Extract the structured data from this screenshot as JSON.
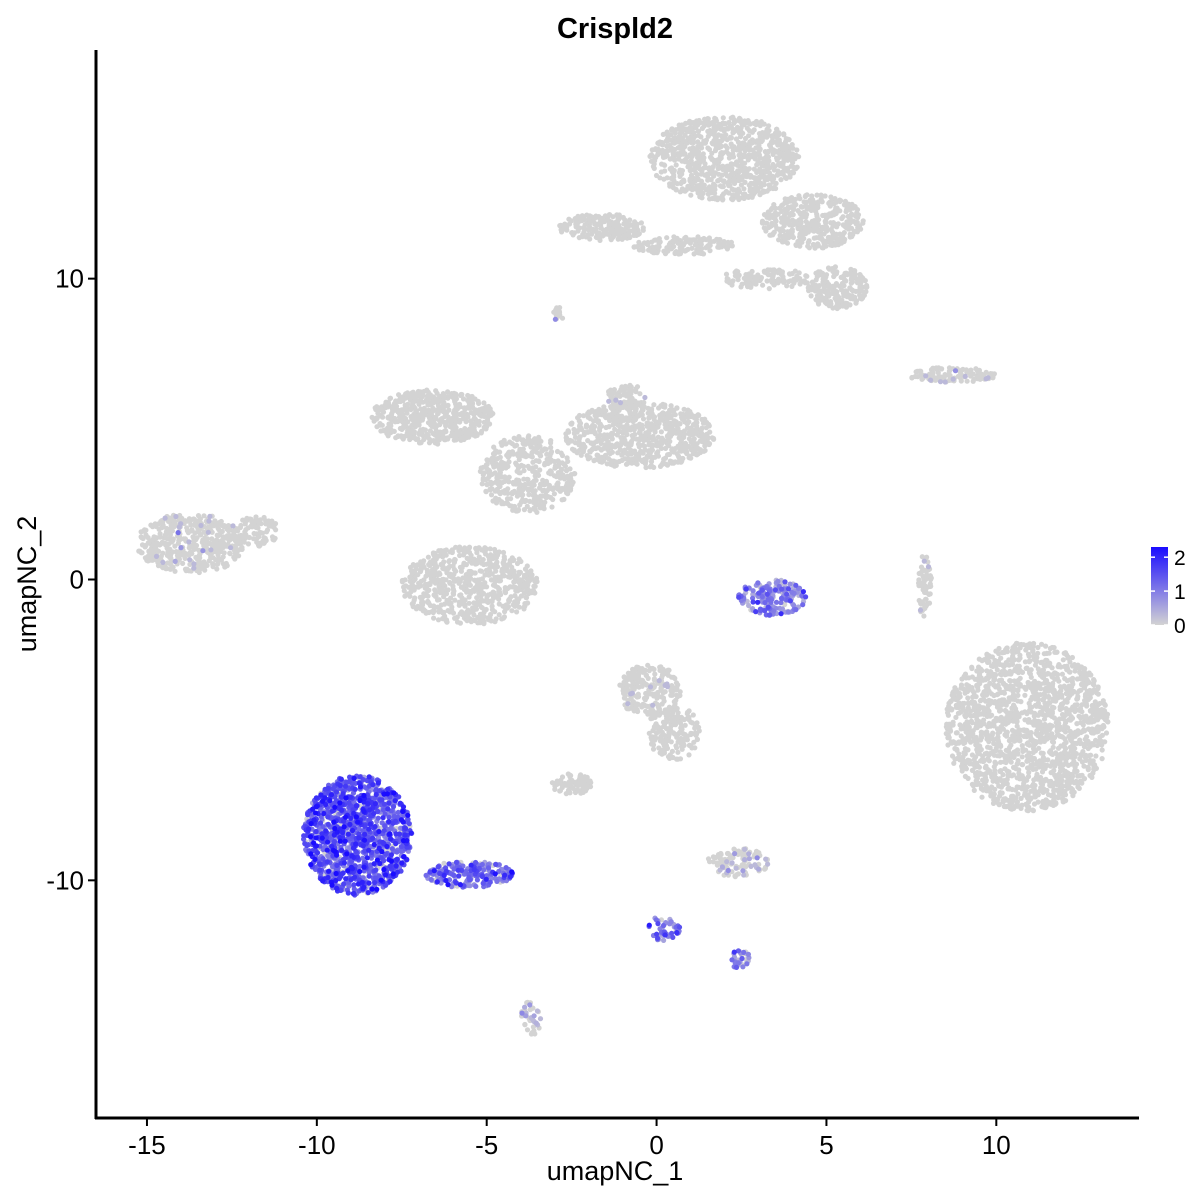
{
  "chart_data": {
    "type": "scatter",
    "title": "Crispld2",
    "xlabel": "umapNC_1",
    "ylabel": "umapNC_2",
    "xlim": [
      -16.5,
      14.2
    ],
    "ylim": [
      -17.9,
      17.6
    ],
    "x_ticks": [
      -15,
      -10,
      -5,
      0,
      5,
      10
    ],
    "y_ticks": [
      -10,
      0,
      10
    ],
    "x_tick_labels": [
      "-15",
      "-10",
      "-5",
      "0",
      "5",
      "10"
    ],
    "y_tick_labels": [
      "-10",
      "0",
      "10"
    ],
    "grid": false,
    "legend": {
      "position": "right",
      "min": 0,
      "max": 2.3,
      "ticks": [
        0,
        1,
        2
      ],
      "tick_labels": [
        "0",
        "1",
        "2"
      ]
    },
    "colors": {
      "low": "#d3d3d3",
      "high": "#1a0cff"
    },
    "clusters": [
      {
        "id": "top-cluster-body",
        "cx": 2.0,
        "cy": 14.0,
        "rx": 2.2,
        "ry": 1.4,
        "expr": 0,
        "n": 900
      },
      {
        "id": "top-cluster-right",
        "cx": 4.6,
        "cy": 11.9,
        "rx": 1.5,
        "ry": 0.9,
        "expr": 0,
        "n": 380
      },
      {
        "id": "top-cluster-tail-right",
        "cx": 5.3,
        "cy": 9.7,
        "rx": 0.9,
        "ry": 0.7,
        "expr": 0,
        "n": 200
      },
      {
        "id": "top-cluster-arm-left",
        "cx": -1.6,
        "cy": 11.7,
        "rx": 1.3,
        "ry": 0.45,
        "expr": 0,
        "n": 200
      },
      {
        "id": "top-cluster-arm-mid",
        "cx": 0.8,
        "cy": 11.1,
        "rx": 1.5,
        "ry": 0.3,
        "expr": 0,
        "n": 140
      },
      {
        "id": "top-cluster-arm-low",
        "cx": 3.2,
        "cy": 10.0,
        "rx": 1.3,
        "ry": 0.35,
        "expr": 0,
        "n": 110
      },
      {
        "id": "small-cluster-top",
        "cx": -2.9,
        "cy": 8.8,
        "rx": 0.15,
        "ry": 0.25,
        "expr": 0.1,
        "n": 15
      },
      {
        "id": "right-strip",
        "cx": 8.7,
        "cy": 6.8,
        "rx": 1.3,
        "ry": 0.25,
        "expr": 0.05,
        "n": 110
      },
      {
        "id": "center-left-lobe",
        "cx": -6.6,
        "cy": 5.4,
        "rx": 1.8,
        "ry": 0.9,
        "expr": 0,
        "n": 550
      },
      {
        "id": "center-right-lobe",
        "cx": -0.5,
        "cy": 4.8,
        "rx": 2.2,
        "ry": 1.1,
        "expr": 0,
        "n": 700
      },
      {
        "id": "center-right-top",
        "cx": -0.9,
        "cy": 6.0,
        "rx": 0.6,
        "ry": 0.5,
        "expr": 0.05,
        "n": 70
      },
      {
        "id": "center-hub",
        "cx": -3.8,
        "cy": 3.5,
        "rx": 1.4,
        "ry": 1.3,
        "expr": 0,
        "n": 400
      },
      {
        "id": "center-lower-blob",
        "cx": -5.5,
        "cy": -0.2,
        "rx": 2.0,
        "ry": 1.3,
        "expr": 0,
        "n": 650
      },
      {
        "id": "left-cluster",
        "cx": -13.7,
        "cy": 1.2,
        "rx": 1.6,
        "ry": 1.0,
        "expr": 0.02,
        "n": 450
      },
      {
        "id": "left-cluster-tail",
        "cx": -11.8,
        "cy": 1.6,
        "rx": 0.7,
        "ry": 0.5,
        "expr": 0,
        "n": 80
      },
      {
        "id": "small-arc-cluster",
        "cx": 3.4,
        "cy": -0.6,
        "rx": 1.0,
        "ry": 0.6,
        "expr": 0.9,
        "n": 180
      },
      {
        "id": "vertical-strip-right",
        "cx": 7.9,
        "cy": -0.2,
        "rx": 0.2,
        "ry": 1.2,
        "expr": 0.05,
        "n": 60
      },
      {
        "id": "right-large-cluster",
        "cx": 10.9,
        "cy": -4.9,
        "rx": 2.4,
        "ry": 2.8,
        "expr": 0,
        "n": 1600
      },
      {
        "id": "mid-upper-small",
        "cx": -0.2,
        "cy": -3.7,
        "rx": 0.9,
        "ry": 0.9,
        "expr": 0.05,
        "n": 220
      },
      {
        "id": "mid-diagonal-arm",
        "cx": 0.5,
        "cy": -5.1,
        "rx": 0.8,
        "ry": 0.9,
        "expr": 0,
        "n": 160
      },
      {
        "id": "mid-small-left",
        "cx": -2.5,
        "cy": -6.8,
        "rx": 0.6,
        "ry": 0.35,
        "expr": 0,
        "n": 70
      },
      {
        "id": "mid-small-right",
        "cx": 2.4,
        "cy": -9.4,
        "rx": 0.9,
        "ry": 0.5,
        "expr": 0.15,
        "n": 110
      },
      {
        "id": "big-expressing-cluster",
        "cx": -8.8,
        "cy": -8.5,
        "rx": 1.6,
        "ry": 2.0,
        "expr": 1.4,
        "n": 1300
      },
      {
        "id": "expressing-arm",
        "cx": -5.5,
        "cy": -9.8,
        "rx": 1.3,
        "ry": 0.45,
        "expr": 1.1,
        "n": 200
      },
      {
        "id": "lower-spur",
        "cx": -3.7,
        "cy": -14.6,
        "rx": 0.3,
        "ry": 0.6,
        "expr": 0.3,
        "n": 40
      },
      {
        "id": "lower-branch",
        "cx": 0.2,
        "cy": -11.6,
        "rx": 0.5,
        "ry": 0.4,
        "expr": 1.0,
        "n": 50
      },
      {
        "id": "lower-branch-end",
        "cx": 2.4,
        "cy": -12.6,
        "rx": 0.4,
        "ry": 0.3,
        "expr": 0.9,
        "n": 30
      }
    ]
  }
}
